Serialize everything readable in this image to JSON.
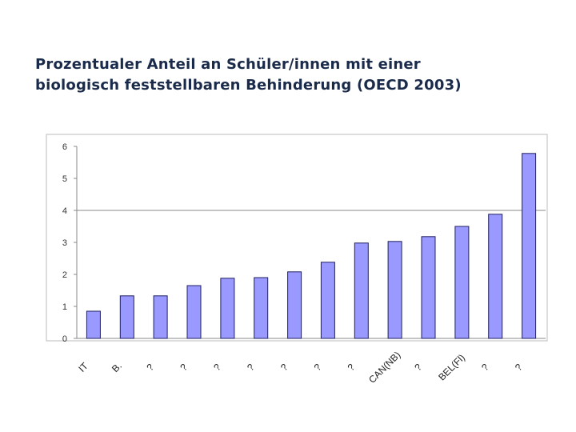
{
  "title": {
    "line1": "Prozentualer Anteil an Schüler/innen mit einer",
    "line2": "biologisch feststellbaren Behinderung (OECD 2003)"
  },
  "chart_data": {
    "type": "bar",
    "title": "Prozentualer Anteil an Schüler/innen mit einer biologisch feststellbaren Behinderung (OECD 2003)",
    "categories": [
      "IT",
      "B.",
      "?",
      "?",
      "?",
      "?",
      "?",
      "?",
      "?",
      "CAN(NB)",
      "?",
      "BEL(Fl)",
      "?",
      "?"
    ],
    "values": [
      0.85,
      1.33,
      1.33,
      1.65,
      1.88,
      1.9,
      2.08,
      2.38,
      2.98,
      3.03,
      3.18,
      3.5,
      3.88,
      5.78
    ],
    "ylim": [
      0,
      6
    ],
    "yticks": [
      0,
      1,
      2,
      3,
      4,
      5,
      6
    ],
    "xlabel": "",
    "ylabel": "",
    "grid": "horizontal at 4",
    "legend": "none",
    "colors": {
      "bar_fill": "#9999ff",
      "bar_stroke": "#202060",
      "axis": "#888888",
      "gridline": "#888888",
      "title": "#1a2a4a"
    }
  }
}
